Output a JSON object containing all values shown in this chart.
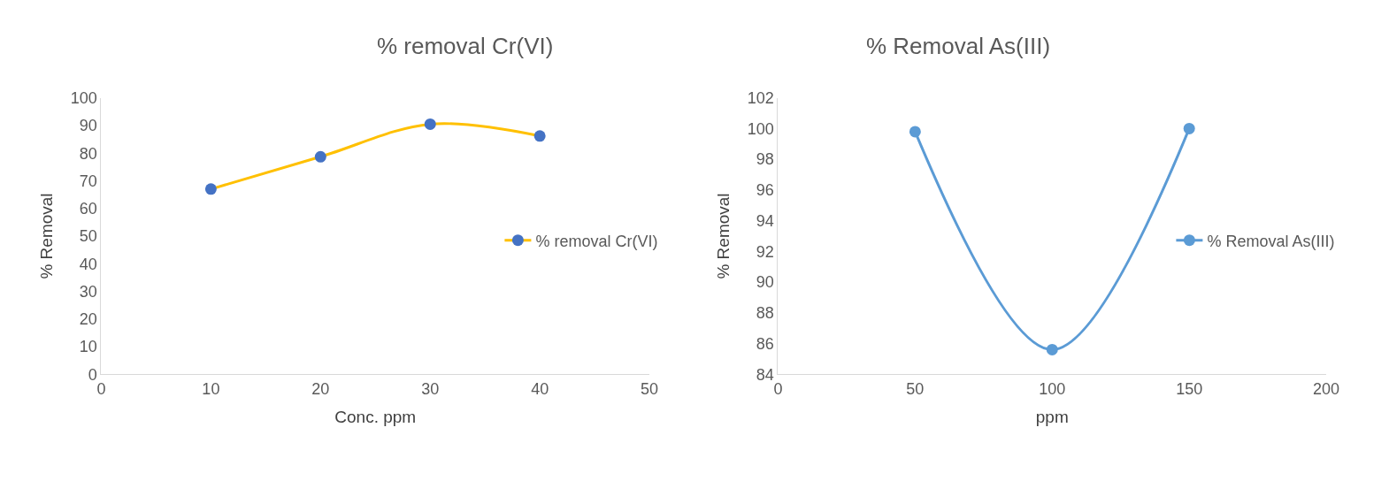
{
  "chart_data": [
    {
      "type": "line",
      "title": "% removal Cr(VI)",
      "xlabel": "Conc. ppm",
      "ylabel": "% Removal",
      "x": [
        10,
        20,
        30,
        40
      ],
      "series": [
        {
          "name": "% removal Cr(VI)",
          "color": "#ffc000",
          "colors": [
            "#4472c4",
            "#4472c4",
            "#4472c4",
            "#4472c4"
          ],
          "values": [
            67,
            78.7,
            90.5,
            86.2
          ]
        }
      ],
      "xlim": [
        0,
        50
      ],
      "xticks": [
        0,
        10,
        20,
        30,
        40,
        50
      ],
      "ylim": [
        0,
        100
      ],
      "yticks": [
        0,
        10,
        20,
        30,
        40,
        50,
        60,
        70,
        80,
        90,
        100
      ],
      "grid": false,
      "legend": "right",
      "marker": "circle",
      "line_style": "solid"
    },
    {
      "type": "line",
      "title": "% Removal As(III)",
      "xlabel": "ppm",
      "ylabel": "% Removal",
      "x": [
        50,
        100,
        150
      ],
      "series": [
        {
          "name": "% Removal As(III)",
          "color": "#5b9bd5",
          "values": [
            99.8,
            85.6,
            100.0
          ]
        }
      ],
      "xlim": [
        0,
        200
      ],
      "xticks": [
        0,
        50,
        100,
        150,
        200
      ],
      "ylim": [
        84,
        102
      ],
      "yticks": [
        84,
        86,
        88,
        90,
        92,
        94,
        96,
        98,
        100,
        102
      ],
      "grid": false,
      "legend": "right",
      "marker": "circle",
      "line_style": "solid"
    }
  ]
}
